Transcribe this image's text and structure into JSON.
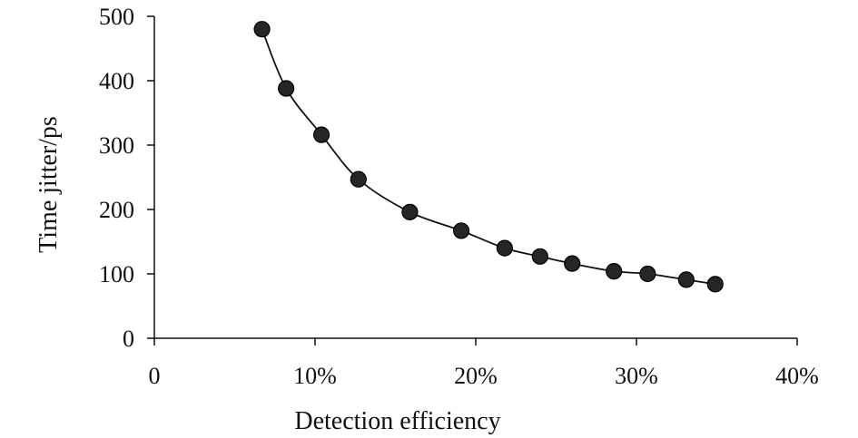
{
  "chart_data": {
    "type": "scatter",
    "title": "",
    "xlabel": "Detection efficiency",
    "ylabel": "Time jitter/ps",
    "xlim": [
      0,
      40
    ],
    "ylim": [
      0,
      500
    ],
    "x_unit": "%",
    "x_ticks": [
      0,
      10,
      20,
      30,
      40
    ],
    "x_tick_labels": [
      "0",
      "10%",
      "20%",
      "30%",
      "40%"
    ],
    "y_ticks": [
      0,
      100,
      200,
      300,
      400,
      500
    ],
    "y_tick_labels": [
      "0",
      "100",
      "200",
      "300",
      "400",
      "500"
    ],
    "grid": false,
    "legend": "none",
    "trendline": true,
    "series": [
      {
        "marker": "filled-circle",
        "color": "#262626",
        "x": [
          6.7,
          8.2,
          10.4,
          12.7,
          15.9,
          19.1,
          21.8,
          24.0,
          26.0,
          28.6,
          30.7,
          33.1,
          34.9
        ],
        "y": [
          480,
          388,
          316,
          247,
          196,
          167,
          140,
          127,
          116,
          104,
          100,
          91,
          84
        ]
      }
    ]
  }
}
